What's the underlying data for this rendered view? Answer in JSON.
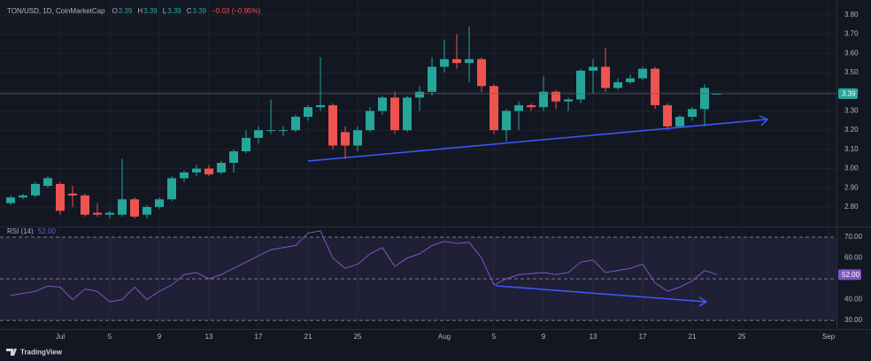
{
  "chart_data": [
    {
      "type": "candlestick",
      "legend": {
        "symbol": "TON/USD, 1D, CoinMarketCap",
        "fields": [
          {
            "label": "O",
            "value": 3.39
          },
          {
            "label": "H",
            "value": 3.39
          },
          {
            "label": "L",
            "value": 3.39
          },
          {
            "label": "C",
            "value": 3.39
          }
        ],
        "change": "−0.03 (−0.95%)"
      },
      "open": [
        2.82,
        2.85,
        2.86,
        2.91,
        2.92,
        2.87,
        2.86,
        2.77,
        2.76,
        2.76,
        2.84,
        2.76,
        2.8,
        2.84,
        2.95,
        2.98,
        3.0,
        2.98,
        3.03,
        3.09,
        3.16,
        3.2,
        3.2,
        3.2,
        3.27,
        3.32,
        3.33,
        3.19,
        3.12,
        3.2,
        3.3,
        3.37,
        3.2,
        3.37,
        3.4,
        3.53,
        3.57,
        3.55,
        3.57,
        3.43,
        3.2,
        3.3,
        3.33,
        3.32,
        3.4,
        3.35,
        3.36,
        3.51,
        3.53,
        3.42,
        3.45,
        3.47,
        3.52,
        3.33,
        3.22,
        3.27,
        3.31,
        3.39
      ],
      "high": [
        2.86,
        2.87,
        2.93,
        2.96,
        2.93,
        2.91,
        2.87,
        2.82,
        2.78,
        3.05,
        2.85,
        2.81,
        2.85,
        2.96,
        2.99,
        3.02,
        3.02,
        3.04,
        3.1,
        3.2,
        3.22,
        3.36,
        3.22,
        3.28,
        3.33,
        3.58,
        3.34,
        3.22,
        3.22,
        3.32,
        3.38,
        3.4,
        3.38,
        3.43,
        3.58,
        3.67,
        3.7,
        3.74,
        3.58,
        3.44,
        3.31,
        3.35,
        3.34,
        3.48,
        3.41,
        3.37,
        3.52,
        3.57,
        3.63,
        3.47,
        3.49,
        3.53,
        3.53,
        3.34,
        3.28,
        3.32,
        3.44,
        3.39
      ],
      "low": [
        2.81,
        2.84,
        2.85,
        2.9,
        2.76,
        2.8,
        2.75,
        2.75,
        2.74,
        2.75,
        2.74,
        2.74,
        2.79,
        2.83,
        2.93,
        2.96,
        2.96,
        2.97,
        2.98,
        3.08,
        3.13,
        3.18,
        3.17,
        3.19,
        3.25,
        3.3,
        3.1,
        3.05,
        3.09,
        3.19,
        3.28,
        3.18,
        3.19,
        3.3,
        3.38,
        3.5,
        3.52,
        3.45,
        3.4,
        3.18,
        3.14,
        3.2,
        3.3,
        3.3,
        3.31,
        3.3,
        3.34,
        3.39,
        3.4,
        3.41,
        3.44,
        3.46,
        3.31,
        3.2,
        3.21,
        3.25,
        3.22,
        3.39
      ],
      "close": [
        2.85,
        2.86,
        2.92,
        2.95,
        2.78,
        2.86,
        2.76,
        2.76,
        2.77,
        2.84,
        2.75,
        2.8,
        2.84,
        2.95,
        2.98,
        3.0,
        2.97,
        3.03,
        3.09,
        3.16,
        3.2,
        3.2,
        3.2,
        3.27,
        3.32,
        3.33,
        3.12,
        3.12,
        3.2,
        3.3,
        3.37,
        3.2,
        3.37,
        3.4,
        3.53,
        3.57,
        3.55,
        3.57,
        3.43,
        3.2,
        3.3,
        3.33,
        3.32,
        3.4,
        3.35,
        3.36,
        3.51,
        3.53,
        3.42,
        3.45,
        3.47,
        3.52,
        3.33,
        3.22,
        3.27,
        3.31,
        3.42,
        3.39
      ],
      "up_color": "#26a69a",
      "down_color": "#ef5350",
      "current": {
        "value": 3.39,
        "label": "3.39"
      },
      "xlim": [
        -0.857,
        66.64
      ],
      "xticks": [
        {
          "value": 4,
          "label": "Jul"
        },
        {
          "value": 8,
          "label": "5"
        },
        {
          "value": 12,
          "label": "9"
        },
        {
          "value": 16,
          "label": "13"
        },
        {
          "value": 20,
          "label": "17"
        },
        {
          "value": 24,
          "label": "21"
        },
        {
          "value": 28,
          "label": "25"
        },
        {
          "value": 35,
          "label": "Aug"
        },
        {
          "value": 39,
          "label": "5"
        },
        {
          "value": 43,
          "label": "9"
        },
        {
          "value": 47,
          "label": "13"
        },
        {
          "value": 51,
          "label": "17"
        },
        {
          "value": 55,
          "label": "21"
        },
        {
          "value": 59,
          "label": "25"
        },
        {
          "value": 66,
          "label": "Sep"
        }
      ],
      "ylim": [
        2.703,
        3.878
      ],
      "yticks": [
        {
          "value": 2.8,
          "label": "2.80"
        },
        {
          "value": 2.9,
          "label": "2.90"
        },
        {
          "value": 3.0,
          "label": "3.00"
        },
        {
          "value": 3.1,
          "label": "3.10"
        },
        {
          "value": 3.2,
          "label": "3.20"
        },
        {
          "value": 3.3,
          "label": "3.30"
        },
        {
          "value": 3.4,
          "label": "3.40"
        },
        {
          "value": 3.5,
          "label": "3.50"
        },
        {
          "value": 3.6,
          "label": "3.60"
        },
        {
          "value": 3.7,
          "label": "3.70"
        },
        {
          "value": 3.8,
          "label": "3.80"
        }
      ],
      "grid": true
    },
    {
      "type": "line",
      "title": "RSI (14)",
      "color": "#7e57c2",
      "values": [
        42,
        43,
        44,
        46.5,
        46,
        40,
        45,
        44,
        39,
        40,
        46,
        40,
        44,
        47,
        52,
        53,
        50,
        52,
        55,
        58,
        61,
        64,
        65,
        66,
        72,
        73,
        60,
        55,
        57,
        62,
        65,
        56,
        60,
        62,
        66,
        68,
        67,
        67.5,
        60,
        47,
        50,
        52,
        52.5,
        53,
        52,
        53,
        58,
        59,
        53,
        54,
        55,
        57,
        48,
        44,
        46,
        49,
        54,
        52
      ],
      "current": {
        "value": 52,
        "label": "52.00"
      },
      "bands": [
        30,
        50,
        70
      ],
      "band_fill": "rgba(126,87,194,0.12)",
      "ylim": [
        25.8,
        74.7
      ],
      "yticks": [
        {
          "value": 30,
          "label": "30.00"
        },
        {
          "value": 40,
          "label": "40.00"
        },
        {
          "value": 60,
          "label": "60.00"
        },
        {
          "value": 70,
          "label": "70.00"
        }
      ]
    }
  ],
  "footer": {
    "brand": "TradingView"
  }
}
